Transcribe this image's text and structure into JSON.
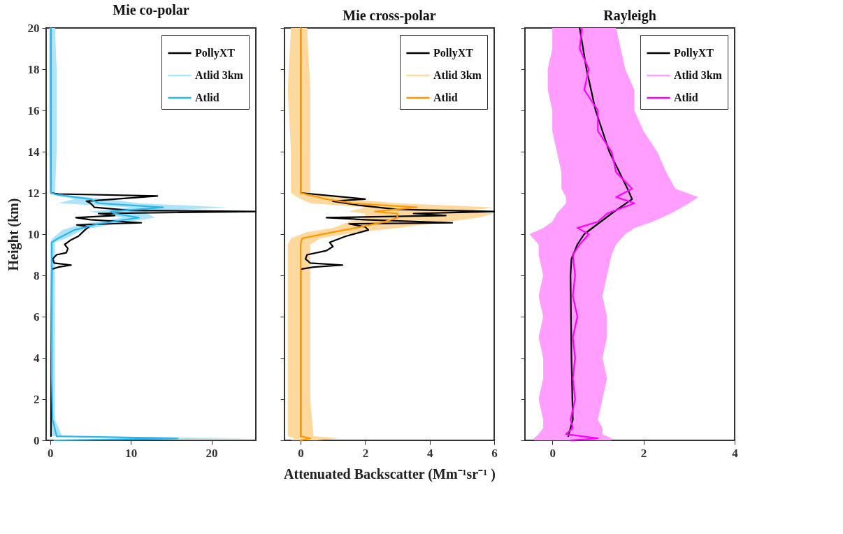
{
  "chart_data": [
    {
      "type": "line",
      "orientation": "horizontal",
      "title": "Mie co-polar",
      "ylabel": "Height (km)",
      "xlim": [
        -0.5,
        25.5
      ],
      "xticks": [
        0,
        10,
        20
      ],
      "ylim": [
        0,
        20
      ],
      "yticks": [
        0,
        2,
        4,
        6,
        8,
        10,
        12,
        14,
        16,
        18,
        20
      ],
      "legend": "top right",
      "annotations": [
        "Atlid 3km"
      ],
      "series": [
        {
          "name": "PollyXT",
          "color": "#000000",
          "x": [
            0.2,
            8.3,
            8.4,
            8.5,
            8.6,
            8.8,
            9.0,
            9.1,
            9.3,
            9.5,
            9.7,
            9.9,
            10.2,
            10.35,
            10.45,
            10.55,
            10.7,
            10.8,
            10.9,
            11.0,
            11.1,
            11.15,
            11.3,
            11.5,
            11.6,
            11.7,
            11.85,
            11.95,
            12.0,
            20
          ],
          "values": [
            0.1,
            0.2,
            1.0,
            2.6,
            0.5,
            0.3,
            0.8,
            2.0,
            2.2,
            1.8,
            2.5,
            3.5,
            4.3,
            4.8,
            3.3,
            11.3,
            5.0,
            3.2,
            8.0,
            6.0,
            25.5,
            10,
            5.5,
            5.0,
            4.5,
            8.0,
            13.3,
            1.0,
            0.1,
            0.1
          ]
        },
        {
          "name": "Atlid",
          "color": "#2ab7f0",
          "x": [
            0,
            0.1,
            0.2,
            1,
            3,
            5,
            7,
            8,
            9,
            9.6,
            9.8,
            10.2,
            10.5,
            10.8,
            11.0,
            11.1,
            11.3,
            11.5,
            11.7,
            11.9,
            12.0,
            14,
            16,
            18,
            20
          ],
          "values": [
            0.5,
            15.8,
            0.8,
            0.3,
            0.2,
            0.2,
            0.2,
            0.2,
            0.2,
            0.2,
            1.0,
            3.0,
            6.0,
            11.0,
            8.0,
            7.5,
            14.0,
            6.0,
            5.0,
            1.0,
            0.1,
            0.1,
            0.1,
            0.1,
            0.1
          ],
          "lower": [
            0.2,
            14,
            0.2,
            0,
            0,
            0,
            0,
            0,
            0,
            0,
            0.3,
            1.5,
            4,
            9,
            6,
            5,
            10,
            1,
            3,
            0.5,
            0,
            -0.1,
            -0.1,
            -0.1,
            -0.1
          ],
          "upper": [
            1,
            25,
            1.5,
            0.6,
            0.6,
            0.6,
            0.6,
            0.6,
            0.6,
            0.6,
            2,
            4,
            8,
            13,
            12,
            12,
            22,
            11,
            7,
            2,
            0.6,
            0.8,
            0.8,
            0.8,
            0.6
          ]
        }
      ]
    },
    {
      "type": "line",
      "orientation": "horizontal",
      "title": "Mie cross-polar",
      "xlabel": "Attenuated Backscatter (Mm⁻¹sr⁻¹ )",
      "xlim": [
        -0.5,
        6
      ],
      "xticks": [
        0,
        2,
        4,
        6
      ],
      "ylim": [
        0,
        20
      ],
      "yticks": [
        0,
        2,
        4,
        6,
        8,
        10,
        12,
        14,
        16,
        18,
        20
      ],
      "tick_labels": "x",
      "legend": "top right",
      "annotations": [
        "Atlid 3km"
      ],
      "series": [
        {
          "name": "PollyXT",
          "color": "#000000",
          "x": [
            0.2,
            8.3,
            8.4,
            8.5,
            8.6,
            8.8,
            9.0,
            9.2,
            9.4,
            9.6,
            9.9,
            10.2,
            10.35,
            10.5,
            10.55,
            10.7,
            10.8,
            10.9,
            11.0,
            11.1,
            11.2,
            11.4,
            11.6,
            11.7,
            11.85,
            12.0,
            20
          ],
          "values": [
            0,
            0,
            0.4,
            1.3,
            0.3,
            0.15,
            0.2,
            0.8,
            1.0,
            0.9,
            1.4,
            2.1,
            2.0,
            1.5,
            4.7,
            2.0,
            0.8,
            4.5,
            3.5,
            6.0,
            3.0,
            1.8,
            1.0,
            2.0,
            1.0,
            0,
            0
          ]
        },
        {
          "name": "Atlid",
          "color": "#ff9900",
          "x": [
            0,
            0.1,
            0.2,
            2,
            5,
            8.5,
            9.5,
            9.8,
            10.1,
            10.3,
            10.6,
            10.8,
            11.0,
            11.1,
            11.3,
            11.5,
            11.7,
            12.0,
            14,
            17,
            20
          ],
          "values": [
            0,
            0.3,
            0,
            0,
            0,
            0,
            0,
            0.05,
            1.0,
            1.7,
            2.6,
            3.0,
            3.0,
            2.3,
            3.6,
            1.6,
            0.8,
            0,
            0,
            0,
            0
          ],
          "lower": [
            -0.3,
            -0.2,
            -0.4,
            -0.4,
            -0.4,
            -0.4,
            -0.4,
            -0.3,
            0.2,
            1.0,
            1.5,
            2.0,
            2.0,
            1.5,
            2.0,
            0.3,
            0,
            -0.3,
            -0.3,
            -0.4,
            -0.3
          ],
          "upper": [
            0.5,
            1.2,
            0.4,
            0.3,
            0.3,
            0.3,
            0.3,
            0.6,
            1.8,
            3.0,
            4.5,
            5.5,
            6.0,
            5.0,
            6.0,
            3.0,
            1.5,
            0.3,
            0.3,
            0.3,
            0.2
          ]
        }
      ]
    },
    {
      "type": "line",
      "orientation": "horizontal",
      "title": "Rayleigh",
      "xlim": [
        -0.6,
        4
      ],
      "xticks": [
        0,
        2,
        4
      ],
      "ylim": [
        0,
        20
      ],
      "yticks": [
        0,
        2,
        4,
        6,
        8,
        10,
        12,
        14,
        16,
        18,
        20
      ],
      "tick_labels": "x",
      "legend": "top right",
      "annotations": [
        "Atlid 3km"
      ],
      "series": [
        {
          "name": "PollyXT",
          "color": "#000000",
          "x": [
            0.2,
            1,
            4,
            8,
            8.8,
            9.5,
            10,
            11,
            11.7,
            12.2,
            14,
            16,
            18,
            20
          ],
          "values": [
            0.35,
            0.45,
            0.42,
            0.4,
            0.42,
            0.55,
            0.7,
            1.3,
            1.75,
            1.65,
            1.25,
            0.95,
            0.75,
            0.6
          ]
        },
        {
          "name": "Atlid",
          "color": "#ff00ff",
          "x": [
            0,
            0.1,
            0.3,
            0.6,
            1,
            2,
            3,
            4,
            5,
            6,
            7,
            8,
            9,
            9.5,
            10,
            10.3,
            10.6,
            11,
            11.5,
            11.8,
            12.2,
            13,
            14,
            15,
            16,
            17,
            18,
            19,
            20
          ],
          "values": [
            0.4,
            1.0,
            0.3,
            0.45,
            0.4,
            0.5,
            0.45,
            0.5,
            0.45,
            0.55,
            0.45,
            0.5,
            0.45,
            0.6,
            0.8,
            0.55,
            1.0,
            1.2,
            1.8,
            1.4,
            1.75,
            1.4,
            1.3,
            1.0,
            1.0,
            0.7,
            0.8,
            0.6,
            0.65
          ],
          "lower": [
            -0.4,
            -0.4,
            -0.3,
            -0.2,
            -0.2,
            -0.3,
            -0.2,
            -0.2,
            -0.3,
            -0.2,
            -0.3,
            -0.2,
            -0.3,
            -0.3,
            -0.5,
            -0.2,
            0.0,
            0.1,
            0.3,
            0.3,
            0.2,
            0.2,
            0.1,
            0.0,
            0.0,
            -0.1,
            -0.1,
            0.0,
            0.0
          ],
          "upper": [
            1.3,
            1.3,
            1.1,
            1.1,
            1.0,
            1.1,
            1.2,
            1.1,
            1.2,
            1.2,
            1.1,
            1.2,
            1.3,
            1.4,
            1.6,
            1.8,
            2.2,
            2.6,
            3.0,
            3.2,
            2.7,
            2.5,
            2.3,
            2.0,
            1.8,
            1.8,
            1.6,
            1.5,
            1.4
          ]
        }
      ]
    }
  ]
}
